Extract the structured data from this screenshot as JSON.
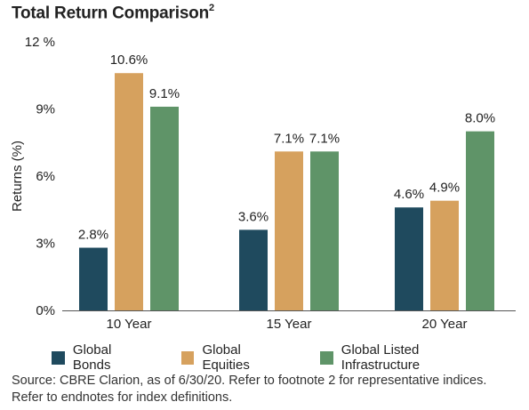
{
  "title": "Total Return Comparison",
  "title_sup": "2",
  "chart_data": {
    "type": "bar",
    "ylabel": "Returns (%)",
    "ylim": [
      0,
      12
    ],
    "yticks": [
      "0%",
      "3%",
      "6%",
      "9%",
      "12 %"
    ],
    "ytick_values": [
      0,
      3,
      6,
      9,
      12
    ],
    "categories": [
      "10 Year",
      "15 Year",
      "20 Year"
    ],
    "series": [
      {
        "name": "Global Bonds",
        "color": "#1f4a5e",
        "values": [
          2.8,
          3.6,
          4.6
        ],
        "labels": [
          "2.8%",
          "3.6%",
          "4.6%"
        ]
      },
      {
        "name": "Global Equities",
        "color": "#d6a15e",
        "values": [
          10.6,
          7.1,
          4.9
        ],
        "labels": [
          "10.6%",
          "7.1%",
          "4.9%"
        ]
      },
      {
        "name": "Global Listed Infrastructure",
        "color": "#5f9468",
        "values": [
          9.1,
          7.1,
          8.0
        ],
        "labels": [
          "9.1%",
          "7.1%",
          "8.0%"
        ]
      }
    ],
    "grid": false,
    "legend": "bottom"
  },
  "source_line1": "Source: CBRE Clarion, as of 6/30/20. Refer to footnote 2 for representative indices.",
  "source_line2": "Refer to endnotes for index definitions."
}
